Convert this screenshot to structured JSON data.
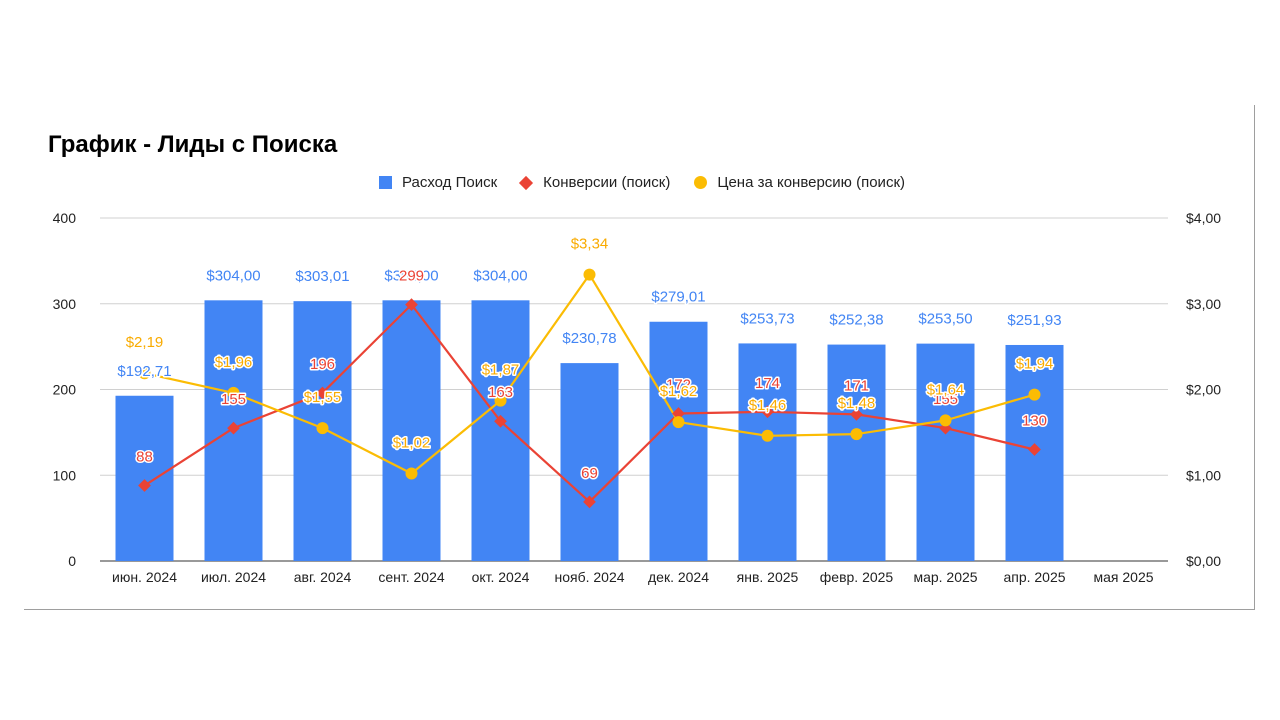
{
  "chart_data": {
    "type": "bar",
    "title": "График - Лиды с Поиска",
    "categories": [
      "июн. 2024",
      "июл. 2024",
      "авг. 2024",
      "сент. 2024",
      "окт. 2024",
      "нояб. 2024",
      "дек. 2024",
      "янв. 2025",
      "февр. 2025",
      "мар. 2025",
      "апр. 2025",
      "мая 2025"
    ],
    "series": [
      {
        "name": "Расход Поиск",
        "type": "bar",
        "axis": "left",
        "color": "#4285f4",
        "values": [
          192.71,
          304.0,
          303.01,
          304.0,
          304.0,
          230.78,
          279.01,
          253.73,
          252.38,
          253.5,
          251.93,
          null
        ],
        "labels": [
          "$192,71",
          "$304,00",
          "$303,01",
          "$304,00",
          "$304,00",
          "$230,78",
          "$279,01",
          "$253,73",
          "$252,38",
          "$253,50",
          "$251,93",
          ""
        ]
      },
      {
        "name": "Конверсии (поиск)",
        "type": "line",
        "axis": "left",
        "color": "#ea4335",
        "values": [
          88,
          155,
          196,
          299,
          163,
          69,
          172,
          174,
          171,
          155,
          130,
          null
        ],
        "labels": [
          "88",
          "155",
          "196",
          "299",
          "163",
          "69",
          "172",
          "174",
          "171",
          "155",
          "130",
          ""
        ]
      },
      {
        "name": "Цена за конверсию (поиск)",
        "type": "line",
        "axis": "right",
        "color": "#fbbc04",
        "values": [
          2.19,
          1.96,
          1.55,
          1.02,
          1.87,
          3.34,
          1.62,
          1.46,
          1.48,
          1.64,
          1.94,
          null
        ],
        "labels": [
          "$2,19",
          "$1,96",
          "$1,55",
          "$1,02",
          "$1,87",
          "$3,34",
          "$1,62",
          "$1,46",
          "$1,48",
          "$1,64",
          "$1,94",
          ""
        ]
      }
    ],
    "y_left": {
      "min": 0,
      "max": 400,
      "ticks": [
        "0",
        "100",
        "200",
        "300",
        "400"
      ]
    },
    "y_right": {
      "min": 0,
      "max": 4,
      "ticks": [
        "$0,00",
        "$1,00",
        "$2,00",
        "$3,00",
        "$4,00"
      ]
    },
    "grid": true,
    "legend": "top-center"
  }
}
